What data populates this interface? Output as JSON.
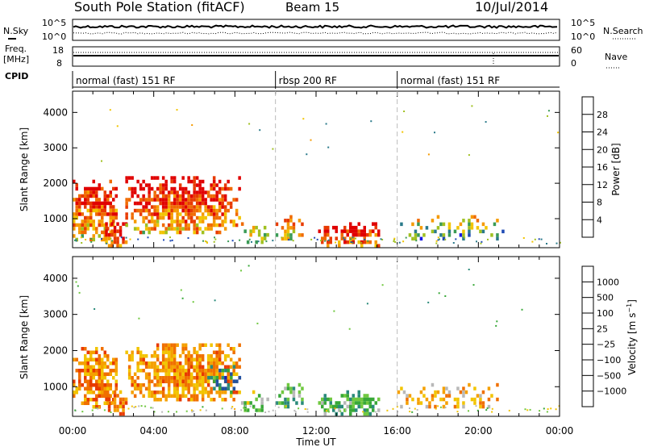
{
  "header": {
    "station": "South Pole Station (fitACF)",
    "beam": "Beam 15",
    "date": "10/Jul/2014"
  },
  "top_panels": {
    "nsky_label": "N.Sky",
    "nsearch_label": "N.Search",
    "left_ticks": [
      "10^5",
      "10^0"
    ],
    "right_ticks": [
      "10^5",
      "10^0"
    ],
    "freq_label_1": "Freq.",
    "freq_label_2": "[MHz]",
    "freq_ticks": [
      "18",
      "8"
    ],
    "nave_ticks": [
      "60",
      "0"
    ],
    "nave_label": "Nave",
    "cpid_label": "CPID"
  },
  "cpid_segments": [
    {
      "label": "normal (fast) 151 RF",
      "start_hour": 0
    },
    {
      "label": "rbsp 200 RF",
      "start_hour": 10
    },
    {
      "label": "normal (fast) 151 RF",
      "start_hour": 16
    }
  ],
  "chart_data": [
    {
      "type": "heatmap",
      "name": "power-panel",
      "ylabel": "Slant Range [km]",
      "xlabel": "Time UT",
      "x_ticks": [
        "00:00",
        "04:00",
        "08:00",
        "12:00",
        "16:00",
        "20:00",
        "00:00"
      ],
      "y_ticks": [
        1000,
        2000,
        3000,
        4000
      ],
      "xlim_hours": [
        0,
        24
      ],
      "ylim_km": [
        180,
        4600
      ],
      "colorbar": {
        "label": "Power [dB]",
        "ticks": [
          "4",
          "8",
          "12",
          "16",
          "20",
          "24",
          "28"
        ],
        "colors": [
          "#1515e6",
          "#1f4ab5",
          "#2a7a8a",
          "#3a9a55",
          "#a0c020",
          "#f2c400",
          "#f59a00",
          "#f06a00",
          "#e83a00",
          "#e00000"
        ]
      },
      "clusters": [
        {
          "t0": 0.0,
          "t1": 2.2,
          "r0": 400,
          "r1": 2100,
          "density": 0.85,
          "intensity": 0.55
        },
        {
          "t0": 1.6,
          "t1": 2.6,
          "r0": 200,
          "r1": 900,
          "density": 0.75,
          "intensity": 0.65
        },
        {
          "t0": 2.6,
          "t1": 8.3,
          "r0": 600,
          "r1": 2200,
          "density": 0.9,
          "intensity": 0.6
        },
        {
          "t0": 8.3,
          "t1": 9.6,
          "r0": 300,
          "r1": 900,
          "density": 0.35,
          "intensity": 0.25
        },
        {
          "t0": 10.0,
          "t1": 11.3,
          "r0": 400,
          "r1": 1100,
          "density": 0.6,
          "intensity": 0.4
        },
        {
          "t0": 12.1,
          "t1": 15.1,
          "r0": 250,
          "r1": 900,
          "density": 0.85,
          "intensity": 0.65
        },
        {
          "t0": 16.0,
          "t1": 21.2,
          "r0": 400,
          "r1": 1100,
          "density": 0.4,
          "intensity": 0.15
        }
      ]
    },
    {
      "type": "heatmap",
      "name": "velocity-panel",
      "ylabel": "Slant Range [km]",
      "xlabel": "Time UT",
      "x_ticks": [
        "00:00",
        "04:00",
        "08:00",
        "12:00",
        "16:00",
        "20:00",
        "00:00"
      ],
      "y_ticks": [
        1000,
        2000,
        3000,
        4000
      ],
      "xlim_hours": [
        0,
        24
      ],
      "ylim_km": [
        180,
        4600
      ],
      "colorbar": {
        "label": "Velocity [m s^-1]",
        "ticks": [
          "1000",
          "500",
          "100",
          "25",
          "−25",
          "−100",
          "−500",
          "−1000"
        ],
        "colors": [
          "#1a1ab4",
          "#2050a0",
          "#2a8a7a",
          "#38a838",
          "#70c840",
          "#b8b8b8",
          "#f2c400",
          "#f5a000",
          "#f07000",
          "#e83a00",
          "#e00000"
        ]
      },
      "clusters": [
        {
          "t0": 0.0,
          "t1": 2.2,
          "r0": 400,
          "r1": 2100,
          "density": 0.85,
          "vel": -0.45
        },
        {
          "t0": 1.6,
          "t1": 2.6,
          "r0": 200,
          "r1": 900,
          "density": 0.75,
          "vel": -0.55
        },
        {
          "t0": 2.6,
          "t1": 8.3,
          "r0": 600,
          "r1": 2200,
          "density": 0.9,
          "vel": -0.4
        },
        {
          "t0": 6.5,
          "t1": 8.3,
          "r0": 800,
          "r1": 1600,
          "density": 0.6,
          "vel": 0.55
        },
        {
          "t0": 8.3,
          "t1": 9.6,
          "r0": 300,
          "r1": 900,
          "density": 0.35,
          "vel": 0.2
        },
        {
          "t0": 10.0,
          "t1": 11.3,
          "r0": 400,
          "r1": 1100,
          "density": 0.6,
          "vel": 0.3
        },
        {
          "t0": 12.1,
          "t1": 15.1,
          "r0": 250,
          "r1": 900,
          "density": 0.85,
          "vel": 0.32
        },
        {
          "t0": 16.0,
          "t1": 21.2,
          "r0": 400,
          "r1": 1100,
          "density": 0.4,
          "vel": -0.3
        }
      ]
    }
  ]
}
